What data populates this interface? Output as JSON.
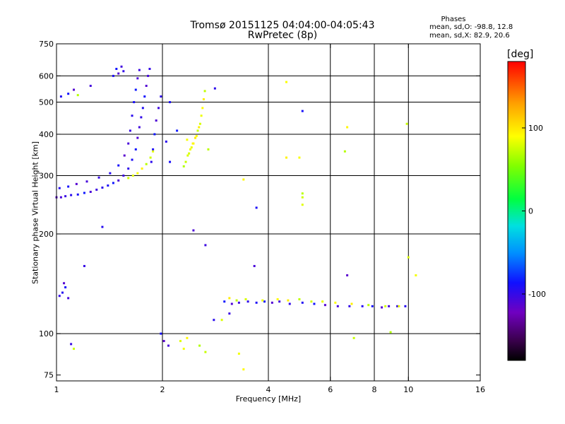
{
  "title": {
    "line1": "Tromsø 20151125 04:04:00-04:05:43",
    "line2": "RwPretec (8p)"
  },
  "stats": {
    "header": "Phases",
    "o_line": "mean, sd,O: -98.8, 12.8",
    "x_line": "mean, sd,X:  82.9, 20.6"
  },
  "chart_data": {
    "type": "scatter",
    "title": "Tromsø 20151125 04:04:00-04:05:43",
    "subtitle": "RwPretec (8p)",
    "xlabel": "Frequency [MHz]",
    "ylabel": "Stationary phase Virtual Height [km]",
    "x_scale": "log2",
    "y_scale": "log",
    "xlim": [
      1,
      16
    ],
    "ylim": [
      72,
      750
    ],
    "x_ticks": [
      1,
      2,
      4,
      6,
      8,
      10,
      16
    ],
    "x_tick_labels": [
      "1",
      "2",
      "4",
      "6",
      "8",
      "10",
      "16"
    ],
    "y_ticks": [
      75,
      100,
      200,
      300,
      400,
      500,
      600,
      750
    ],
    "y_tick_labels": [
      "75",
      "100",
      "200",
      "300",
      "400",
      "500",
      "600",
      "750"
    ],
    "x_grid": [
      2,
      4,
      6,
      8,
      10
    ],
    "y_grid": [
      100,
      200,
      300,
      400,
      500,
      600
    ],
    "colorbar": {
      "label": "[deg]",
      "range": [
        -180,
        180
      ],
      "ticks": [
        -100,
        0,
        100
      ],
      "tick_labels": [
        "-100",
        "0",
        "100"
      ]
    },
    "series": [
      {
        "mode": "O",
        "phase_deg": -98.8,
        "points": [
          [
            1.0,
            258
          ],
          [
            1.03,
            258
          ],
          [
            1.06,
            260
          ],
          [
            1.1,
            262
          ],
          [
            1.15,
            263
          ],
          [
            1.2,
            266
          ],
          [
            1.25,
            268
          ],
          [
            1.3,
            272
          ],
          [
            1.35,
            276
          ],
          [
            1.4,
            280
          ],
          [
            1.45,
            285
          ],
          [
            1.5,
            290
          ],
          [
            1.55,
            300
          ],
          [
            1.6,
            315
          ],
          [
            1.64,
            335
          ],
          [
            1.68,
            360
          ],
          [
            1.7,
            390
          ],
          [
            1.72,
            420
          ],
          [
            1.74,
            450
          ],
          [
            1.76,
            480
          ],
          [
            1.78,
            520
          ],
          [
            1.8,
            560
          ],
          [
            1.82,
            600
          ],
          [
            1.84,
            630
          ],
          [
            1.02,
            275
          ],
          [
            1.08,
            278
          ],
          [
            1.14,
            283
          ],
          [
            1.22,
            288
          ],
          [
            1.32,
            296
          ],
          [
            1.42,
            305
          ],
          [
            1.5,
            322
          ],
          [
            1.56,
            345
          ],
          [
            1.6,
            375
          ],
          [
            1.62,
            410
          ],
          [
            1.64,
            455
          ],
          [
            1.66,
            500
          ],
          [
            1.68,
            545
          ],
          [
            1.7,
            590
          ],
          [
            1.72,
            625
          ],
          [
            1.86,
            330
          ],
          [
            1.88,
            360
          ],
          [
            1.9,
            400
          ],
          [
            1.92,
            440
          ],
          [
            1.95,
            480
          ],
          [
            1.98,
            520
          ],
          [
            1.45,
            600
          ],
          [
            1.48,
            630
          ],
          [
            1.5,
            610
          ],
          [
            1.53,
            640
          ],
          [
            1.55,
            620
          ],
          [
            1.03,
            520
          ],
          [
            1.08,
            530
          ],
          [
            1.12,
            545
          ],
          [
            1.25,
            560
          ],
          [
            1.02,
            130
          ],
          [
            1.04,
            133
          ],
          [
            1.06,
            138
          ],
          [
            1.05,
            142
          ],
          [
            1.08,
            128
          ],
          [
            1.2,
            160
          ],
          [
            1.35,
            210
          ],
          [
            1.98,
            100
          ],
          [
            2.02,
            95
          ],
          [
            2.08,
            92
          ],
          [
            1.1,
            93
          ],
          [
            2.05,
            380
          ],
          [
            2.1,
            330
          ],
          [
            2.2,
            410
          ],
          [
            2.45,
            205
          ],
          [
            2.65,
            185
          ],
          [
            2.82,
            550
          ],
          [
            3.7,
            240
          ],
          [
            3.0,
            125
          ],
          [
            3.15,
            123
          ],
          [
            3.3,
            124
          ],
          [
            3.5,
            125
          ],
          [
            3.7,
            124
          ],
          [
            3.9,
            125
          ],
          [
            4.1,
            124
          ],
          [
            4.3,
            125
          ],
          [
            4.6,
            123
          ],
          [
            5.0,
            124
          ],
          [
            5.4,
            123
          ],
          [
            5.8,
            122
          ],
          [
            6.3,
            121
          ],
          [
            6.8,
            121
          ],
          [
            7.4,
            121
          ],
          [
            7.9,
            121
          ],
          [
            8.4,
            120
          ],
          [
            8.8,
            121
          ],
          [
            9.3,
            121
          ],
          [
            9.8,
            121
          ],
          [
            5.0,
            470
          ],
          [
            6.7,
            150
          ],
          [
            3.65,
            160
          ],
          [
            3.1,
            115
          ],
          [
            2.8,
            110
          ],
          [
            2.1,
            500
          ]
        ]
      },
      {
        "mode": "X",
        "phase_deg": 82.9,
        "points": [
          [
            2.3,
            320
          ],
          [
            2.33,
            330
          ],
          [
            2.36,
            345
          ],
          [
            2.4,
            360
          ],
          [
            2.44,
            375
          ],
          [
            2.48,
            390
          ],
          [
            2.52,
            410
          ],
          [
            2.56,
            430
          ],
          [
            2.58,
            455
          ],
          [
            2.6,
            480
          ],
          [
            2.62,
            510
          ],
          [
            2.64,
            540
          ],
          [
            2.38,
            350
          ],
          [
            2.42,
            365
          ],
          [
            2.5,
            395
          ],
          [
            2.54,
            420
          ],
          [
            2.7,
            360
          ],
          [
            1.6,
            295
          ],
          [
            1.65,
            300
          ],
          [
            1.7,
            305
          ],
          [
            1.75,
            315
          ],
          [
            1.8,
            325
          ],
          [
            1.85,
            340
          ],
          [
            1.88,
            355
          ],
          [
            2.35,
            385
          ],
          [
            2.45,
            375
          ],
          [
            1.15,
            525
          ],
          [
            1.12,
            90
          ],
          [
            2.25,
            95
          ],
          [
            2.3,
            90
          ],
          [
            2.35,
            97
          ],
          [
            2.55,
            92
          ],
          [
            2.65,
            88
          ],
          [
            2.95,
            110
          ],
          [
            3.3,
            87
          ],
          [
            3.4,
            78
          ],
          [
            3.1,
            128
          ],
          [
            3.25,
            126
          ],
          [
            3.45,
            127
          ],
          [
            3.85,
            126
          ],
          [
            4.25,
            127
          ],
          [
            4.55,
            126
          ],
          [
            4.9,
            127
          ],
          [
            5.3,
            125
          ],
          [
            5.7,
            125
          ],
          [
            6.2,
            124
          ],
          [
            6.9,
            123
          ],
          [
            7.7,
            122
          ],
          [
            8.6,
            121
          ],
          [
            9.4,
            121
          ],
          [
            4.5,
            575
          ],
          [
            4.5,
            340
          ],
          [
            5.0,
            265
          ],
          [
            5.0,
            258
          ],
          [
            5.0,
            245
          ],
          [
            4.9,
            340
          ],
          [
            6.7,
            420
          ],
          [
            6.6,
            355
          ],
          [
            9.9,
            430
          ],
          [
            10.0,
            170
          ],
          [
            10.5,
            150
          ],
          [
            3.4,
            292
          ],
          [
            8.9,
            101
          ],
          [
            7.0,
            97
          ]
        ]
      }
    ]
  }
}
